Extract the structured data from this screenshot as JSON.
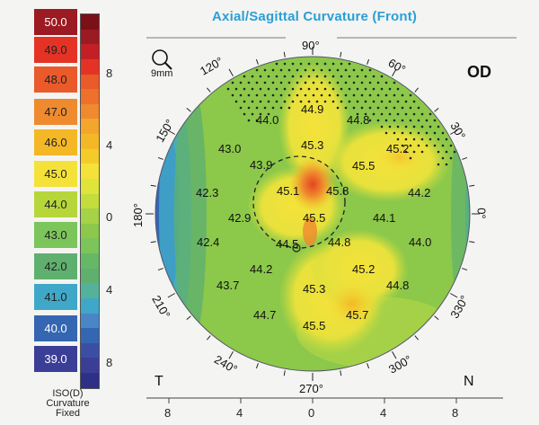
{
  "title": "Axial/Sagittal Curvature (Front)",
  "eye": "OD",
  "zoom_label": "9mm",
  "scale": {
    "values": [
      "50.0",
      "49.0",
      "48.0",
      "47.0",
      "46.0",
      "45.0",
      "44.0",
      "43.0",
      "42.0",
      "41.0",
      "40.0",
      "39.0"
    ],
    "colors": [
      "#9c1a22",
      "#e43325",
      "#ea5a2a",
      "#f08a2e",
      "#f4b826",
      "#f4e23a",
      "#b7d63a",
      "#7bc55a",
      "#5fb06e",
      "#3fa8c8",
      "#3566b2",
      "#3b3e96"
    ],
    "step_label": "ISO(D)",
    "mode_label_1": "Curvature",
    "mode_label_2": "Fixed"
  },
  "vertical_ticks": [
    "8",
    "4",
    "0",
    "4",
    "8"
  ],
  "horizontal_ticks": [
    "8",
    "4",
    "0",
    "4",
    "8"
  ],
  "angles": {
    "a90": "90°",
    "a60": "60°",
    "a30": "30°",
    "a0": "0°",
    "a120": "120°",
    "a150": "150°",
    "a180": "180°",
    "a210": "210°",
    "a240": "240°",
    "a270": "270°",
    "a300": "300°",
    "a330": "330°"
  },
  "corners": {
    "temporal": "T",
    "nasal": "N"
  },
  "map_values": [
    "44.9",
    "44.8",
    "44.0",
    "45.3",
    "43.0",
    "45.2",
    "43.9",
    "45.5",
    "45.1",
    "45.8",
    "42.3",
    "44.2",
    "42.9",
    "45.5",
    "44.1",
    "42.4",
    "44.5",
    "44.8",
    "44.0",
    "44.2",
    "45.2",
    "43.7",
    "45.3",
    "44.8",
    "44.7",
    "45.7",
    "45.5"
  ]
}
